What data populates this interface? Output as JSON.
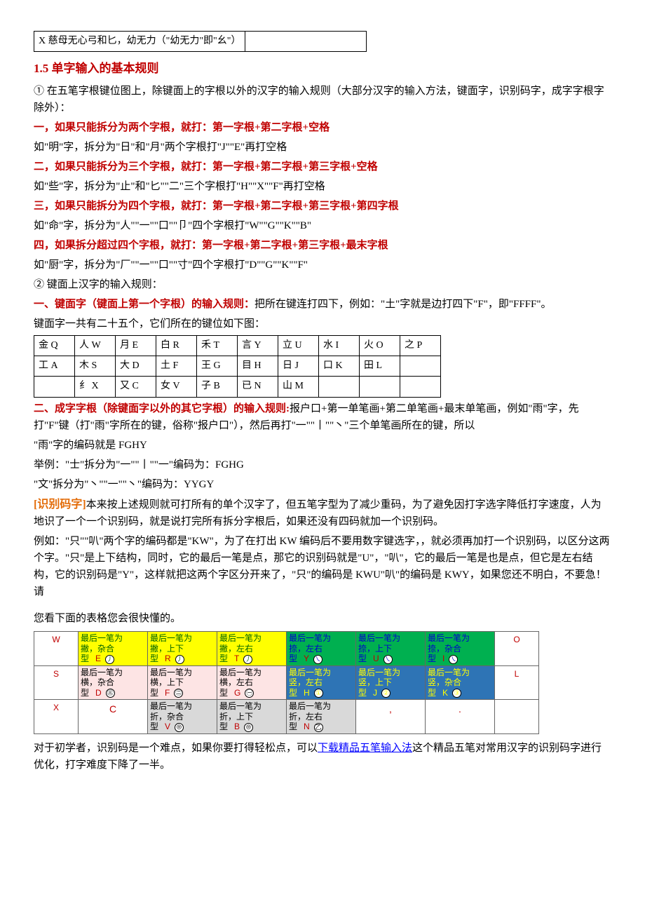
{
  "topBox": {
    "left": "X 慈母无心弓和匕，幼无力（\"幼无力\"即\"幺\"）",
    "right": ""
  },
  "sectionTitle": "1.5 单字输入的基本规则",
  "intro1": "① 在五笔字根键位图上，除键面上的字根以外的汉字的输入规则（大部分汉字的输入方法，键面字，识别码字，成字字根字除外）：",
  "rule1Title": "一，如果只能拆分为两个字根，就打：第一字根+第二字根+空格",
  "rule1Ex": "如\"明\"字，拆分为\"日\"和\"月\"两个字根打\"J\"\"E\"再打空格",
  "rule2Title": "二，如果只能拆分为三个字根，就打：第一字根+第二字根+第三字根+空格",
  "rule2Ex": "如\"些\"字，拆分为\"止\"和\"匕\"\"二\"三个字根打\"H\"\"X\"\"F\"再打空格",
  "rule3Title": "三，如果只能拆分为四个字根，就打：第一字根+第二字根+第三字根+第四字根",
  "rule3Ex": "如\"命\"字，拆分为\"人\"\"一\"\"口\"\"卩\"四个字根打\"W\"\"G\"\"K\"\"B\"",
  "rule4Title": "四，如果拆分超过四个字根，就打：第一字根+第二字根+第三字根+最末字根",
  "rule4Ex": "如\"厨\"字，拆分为\"厂\"\"一\"\"口\"\"寸\"四个字根打\"D\"\"G\"\"K\"\"F\"",
  "intro2": "② 键面上汉字的输入规则：",
  "keyfaceTitle": "一、键面字（键面上第一个字根）的输入规则：",
  "keyfaceBody": "把所在键连打四下，例如：\"土\"字就是边打四下\"F\"，即\"FFFF\"。",
  "keyfaceIntro": "键面字一共有二十五个，它们所在的键位如下图：",
  "keyTable": {
    "rows": [
      [
        "金 Q",
        "人 W",
        "月 E",
        "白 R",
        "禾 T",
        "言 Y",
        "立 U",
        "水 I",
        "火 O",
        "之 P"
      ],
      [
        "工 A",
        "木 S",
        "大 D",
        "土 F",
        "王 G",
        "目 H",
        "日 J",
        "口 K",
        "田 L",
        ""
      ],
      [
        "",
        "纟 X",
        "又 C",
        "女 V",
        "子 B",
        "已 N",
        "山 M",
        "",
        "",
        ""
      ]
    ]
  },
  "chengziTitle": "二、成字字根（除键面字以外的其它字根）的输入规则:",
  "chengziBody": "报户口+第一单笔画+第二单笔画+最末单笔画，例如\"雨\"字，先打\"F\"键（打\"雨\"字所在的键，俗称\"报户口\"），然后再打\"一\"\"丨\"\"丶\"三个单笔画所在的键，所以",
  "chengziEx1": "\"雨\"字的编码就是 FGHY",
  "chengziEx2": "举例：\"士\"拆分为\"一\"\"丨\"\"一\"编码为：FGHG",
  "chengziEx3": "\"文\"拆分为\"丶\"\"一\"\"丶\"编码为：YYGY",
  "idTitle": "[识别码字]",
  "idBody1": "本来按上述规则就可打所有的单个汉字了，但五笔字型为了减少重码，为了避免因打字选字降低打字速度，人为地识了一个一个识别码，就是说打完所有拆分字根后，如果还没有四码就加一个识别码。",
  "idBody2": "例如：\"只\"\"叭\"两个字的编码都是\"KW\"，为了在打出 KW 编码后不要用数字键选字，，就必须再加打一个识别码，以区分这两个字。\"只\"是上下结构，同时，它的最后一笔是点，那它的识别码就是\"U\"，\"叭\"，它的最后一笔是也是点，但它是左右结构，它的识别码是\"Y\"，这样就把这两个字区分开来了，\"只\"的编码是 KWU\"叭\"的编码是 KWY，如果您还不明白，不要急！请",
  "idBody3": "您看下面的表格您会很快懂的。",
  "idTable": {
    "colors": {
      "yellow": "#ffff00",
      "yellowText": "#006400",
      "green": "#00b050",
      "greenText": "#0000cc",
      "pink": "#fde4e4",
      "blue": "#2e74b5",
      "blueText": "#ffff00",
      "gray": "#d9d9d9",
      "labelRed": "#c00000"
    },
    "rows": [
      {
        "left": "W",
        "cells": [
          {
            "bg": "yellow",
            "t1": "最后一笔为",
            "t2": "撇，杂合",
            "t3": "型",
            "k": "E",
            "sym": "㇓"
          },
          {
            "bg": "yellow",
            "t1": "最后一笔为",
            "t2": "撇，上下",
            "t3": "型",
            "k": "R",
            "sym": "㇓"
          },
          {
            "bg": "yellow",
            "t1": "最后一笔为",
            "t2": "撇，左右",
            "t3": "型",
            "k": "T",
            "sym": "㇓"
          },
          {
            "bg": "green",
            "t1": "最后一笔为",
            "t2": "捺，左右",
            "t3": "型",
            "k": "Y",
            "sym": "㇏"
          },
          {
            "bg": "green",
            "t1": "最后一笔为",
            "t2": "捺，上下",
            "t3": "型",
            "k": "U",
            "sym": "㇏"
          },
          {
            "bg": "green",
            "t1": "最后一笔为",
            "t2": "捺，杂合",
            "t3": "型",
            "k": "I",
            "sym": "㇏"
          }
        ],
        "right": "O"
      },
      {
        "left": "S",
        "cells": [
          {
            "bg": "pink",
            "t1": "最后一笔为",
            "t2": "横，杂合",
            "t3": "型",
            "k": "D",
            "sym": "㊂"
          },
          {
            "bg": "pink",
            "t1": "最后一笔为",
            "t2": "横，上下",
            "t3": "型",
            "k": "F",
            "sym": "㊁"
          },
          {
            "bg": "pink",
            "t1": "最后一笔为",
            "t2": "横，左右",
            "t3": "型",
            "k": "G",
            "sym": "㊀"
          },
          {
            "bg": "blue",
            "t1": "最后一笔为",
            "t2": "竖，左右",
            "t3": "型",
            "k": "H",
            "sym": "①"
          },
          {
            "bg": "blue",
            "t1": "最后一笔为",
            "t2": "竖，上下",
            "t3": "型",
            "k": "J",
            "sym": "②"
          },
          {
            "bg": "blue",
            "t1": "最后一笔为",
            "t2": "竖，杂合",
            "t3": "型",
            "k": "K",
            "sym": "③"
          }
        ],
        "right": "L"
      },
      {
        "left": "X",
        "cells": [
          {
            "bg": "none",
            "label": "C"
          },
          {
            "bg": "gray",
            "t1": "最后一笔为",
            "t2": "折，杂合",
            "t3": "型",
            "k": "V",
            "sym": "⦾"
          },
          {
            "bg": "gray",
            "t1": "最后一笔为",
            "t2": "折，上下",
            "t3": "型",
            "k": "B",
            "sym": "⦾"
          },
          {
            "bg": "gray",
            "t1": "最后一笔为",
            "t2": "折，左右",
            "t3": "型",
            "k": "N",
            "sym": "乙"
          },
          {
            "bg": "none",
            "label": ","
          },
          {
            "bg": "none",
            "label": "."
          }
        ],
        "right": ""
      }
    ]
  },
  "footer1a": "对于初学者，识别码是一个难点，如果你要打得轻松点，可以",
  "footerLink": "下载精品五笔输入法",
  "footer1b": "这个精品五笔对常用汉字的识别码字进行优化，打字难度下降了一半。"
}
